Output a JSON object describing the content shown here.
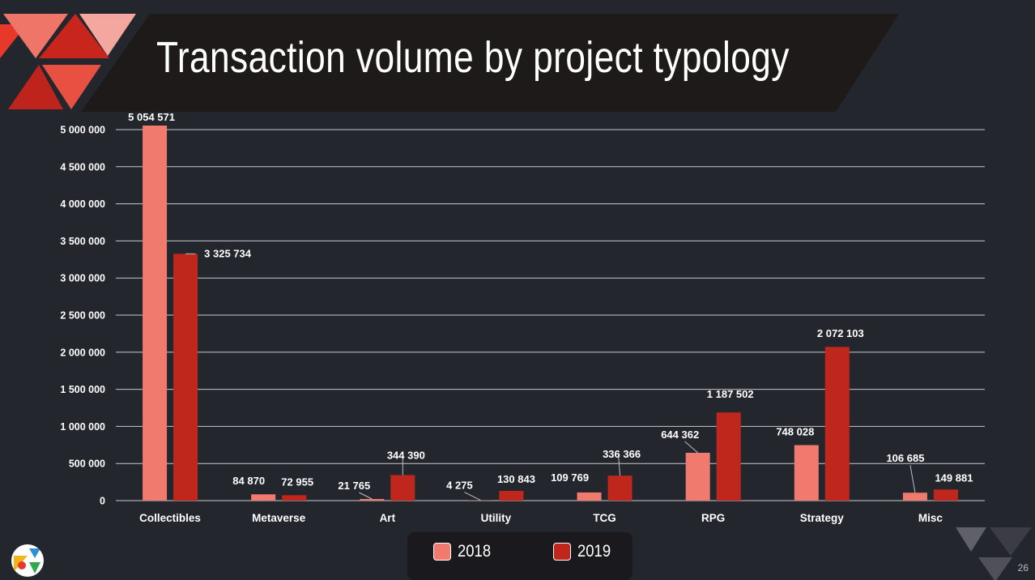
{
  "slide": {
    "title": "Transaction volume by project typology",
    "page_number": "26"
  },
  "colors": {
    "background": "#24262e",
    "series_2018": "#ef7a6d",
    "series_2019": "#c0271c",
    "grid": "#c9c9cc",
    "text": "#ffffff"
  },
  "legend": {
    "items": [
      {
        "label": "2018",
        "color": "#ef7a6d"
      },
      {
        "label": "2019",
        "color": "#c0271c"
      }
    ]
  },
  "chart_data": {
    "type": "bar",
    "title": "Transaction volume by project typology",
    "categories": [
      "Collectibles",
      "Metaverse",
      "Art",
      "Utility",
      "TCG",
      "RPG",
      "Strategy",
      "Misc"
    ],
    "series": [
      {
        "name": "2018",
        "values": [
          5054571,
          84870,
          21765,
          4275,
          109769,
          644362,
          748028,
          106685
        ],
        "labels": [
          "5 054 571",
          "84 870",
          "21 765",
          "4 275",
          "109 769",
          "644 362",
          "748 028",
          "106 685"
        ]
      },
      {
        "name": "2019",
        "values": [
          3325734,
          72955,
          344390,
          130843,
          336366,
          1187502,
          2072103,
          149881
        ],
        "labels": [
          "3 325 734",
          "72 955",
          "344 390",
          "130 843",
          "336 366",
          "1 187 502",
          "2 072 103",
          "149 881"
        ]
      }
    ],
    "ylim": [
      0,
      5000000
    ],
    "yticks": [
      0,
      500000,
      1000000,
      1500000,
      2000000,
      2500000,
      3000000,
      3500000,
      4000000,
      4500000,
      5000000
    ],
    "ytick_labels": [
      "0",
      "500 000",
      "1 000 000",
      "1 500 000",
      "2 000 000",
      "2 500 000",
      "3 000 000",
      "3 500 000",
      "4 000 000",
      "4 500 000",
      "5 000 000"
    ],
    "grid": true,
    "legend_position": "bottom"
  }
}
